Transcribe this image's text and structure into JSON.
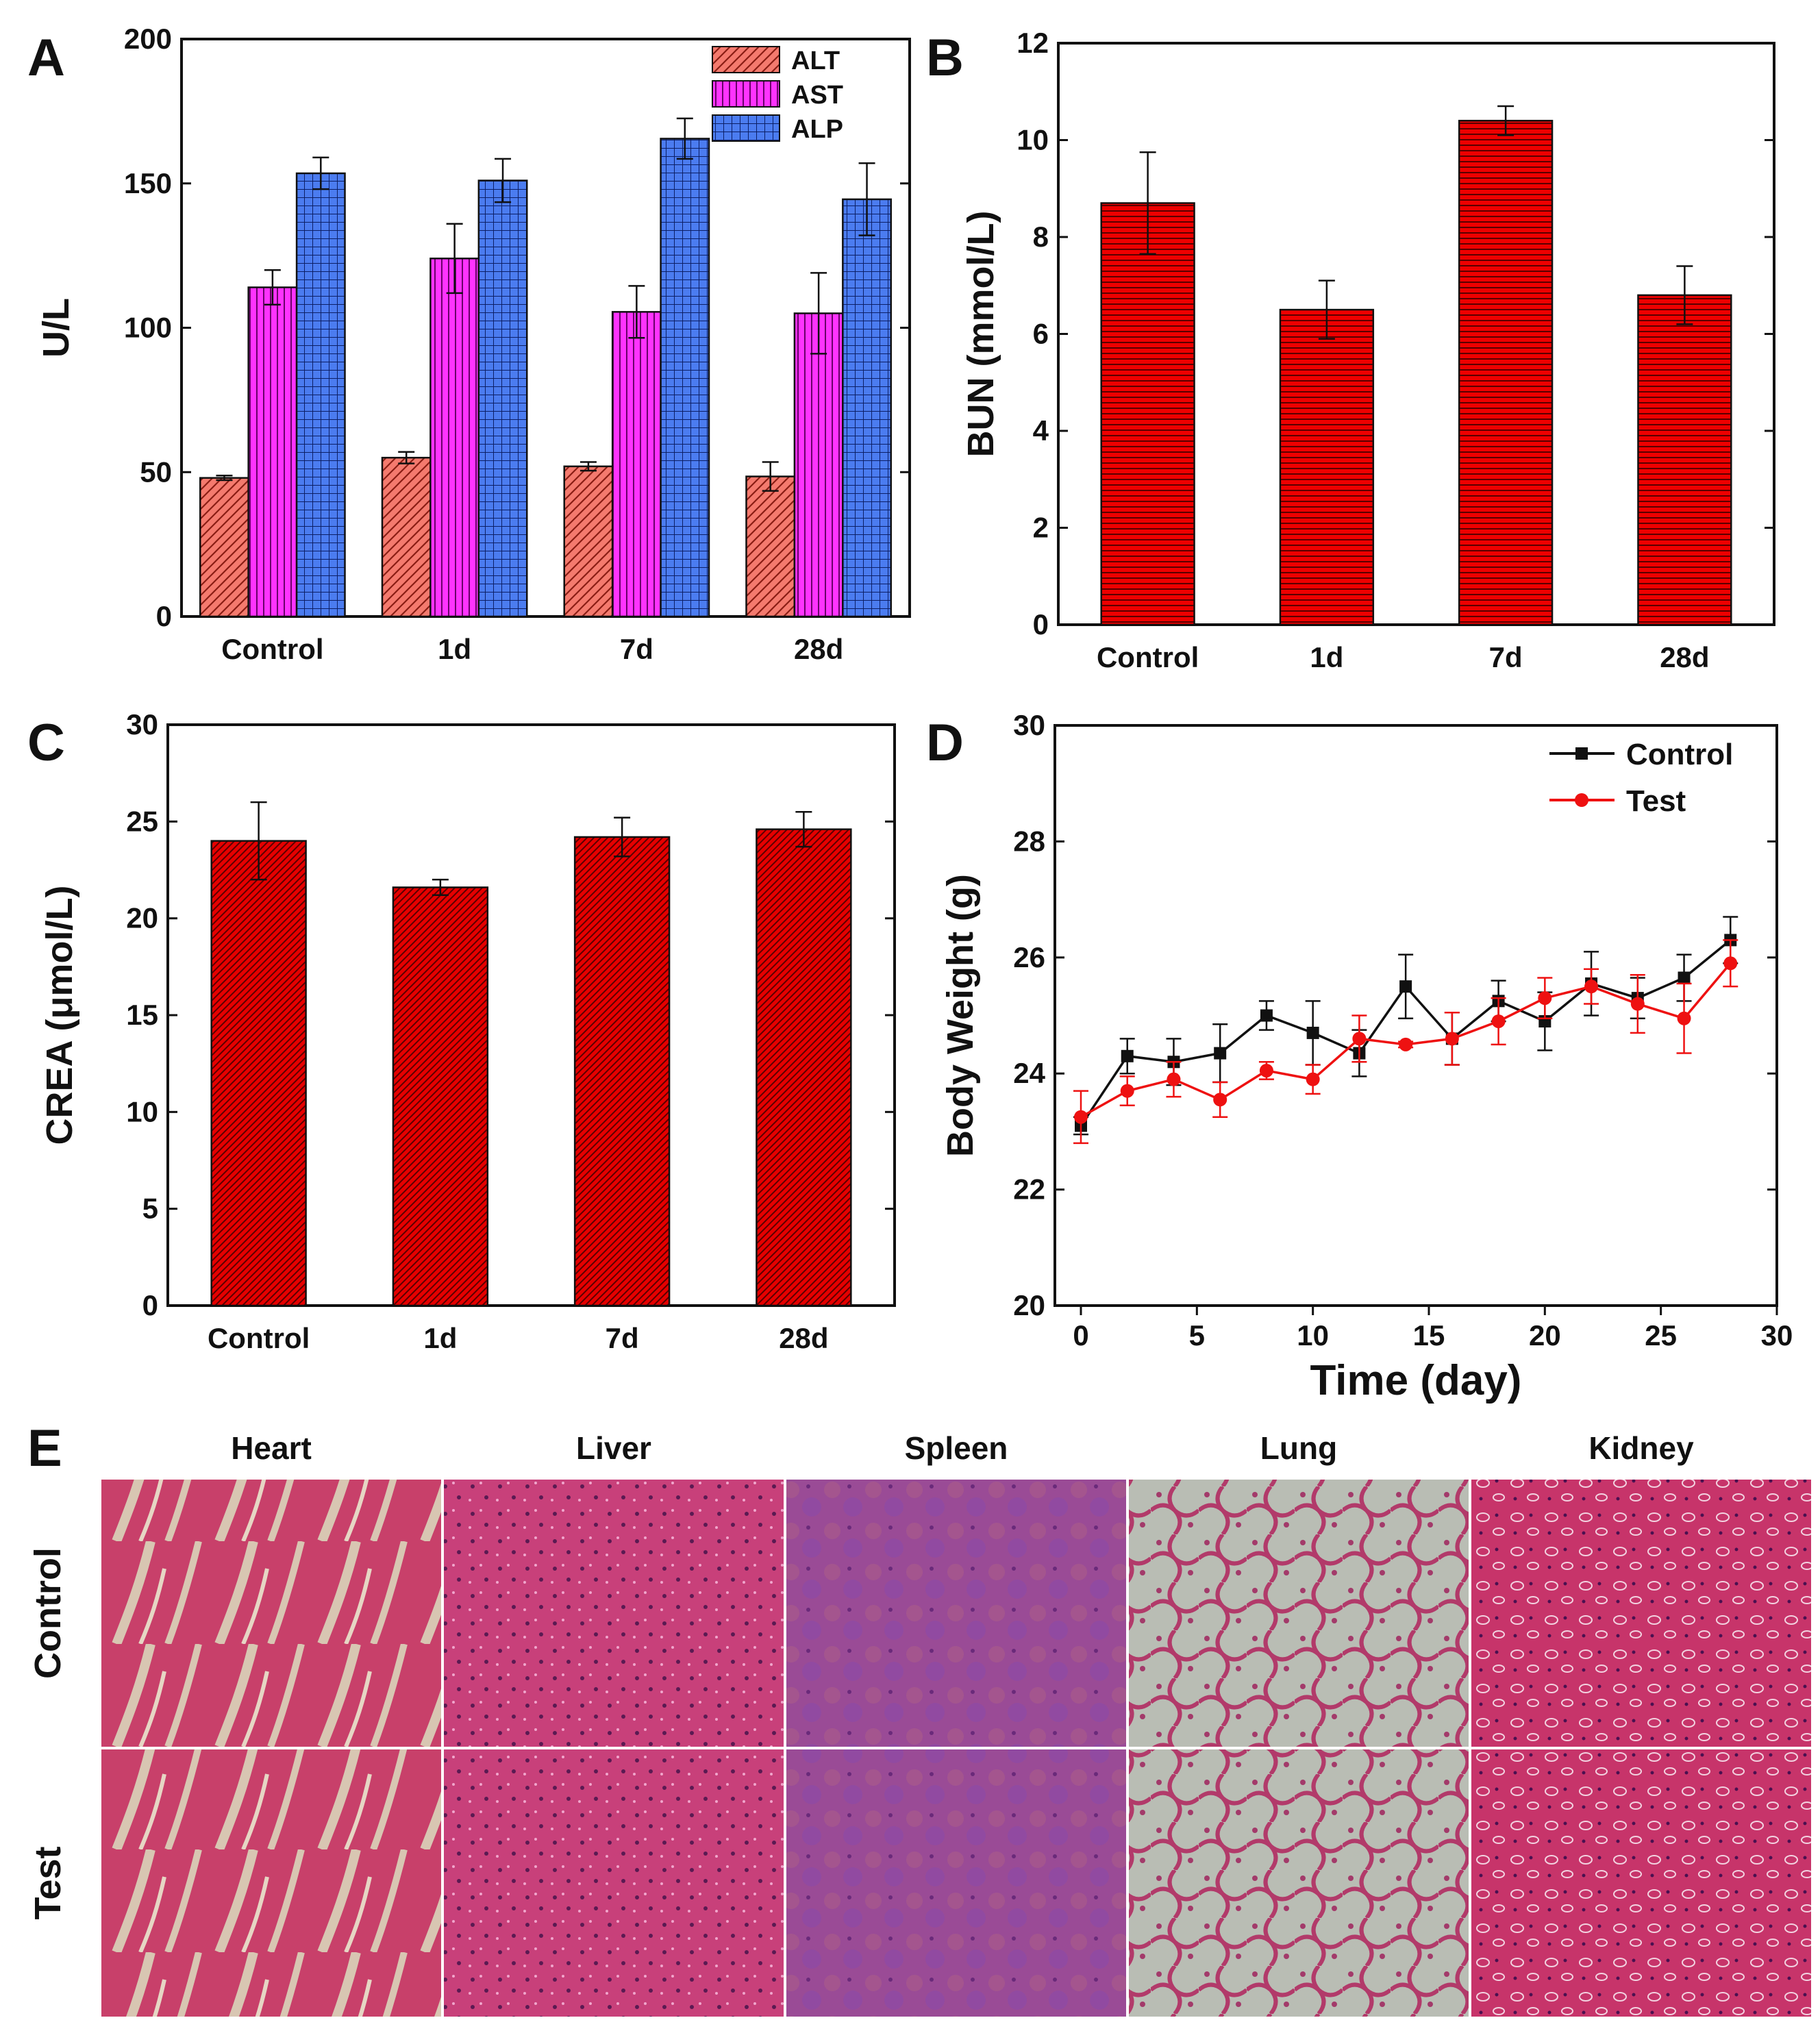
{
  "chart_data": [
    {
      "id": "A",
      "panel_label": "A",
      "type": "bar",
      "ylabel": "U/L",
      "xlabel": "",
      "ylim": [
        0,
        200
      ],
      "yticks": [
        "0",
        "50",
        "100",
        "150",
        "200"
      ],
      "categories": [
        "Control",
        "1d",
        "7d",
        "28d"
      ],
      "series": [
        {
          "name": "ALT",
          "color": "#f47a6e",
          "pattern": "diagonal",
          "values": [
            48,
            55,
            52,
            48.5
          ],
          "errors": [
            0.8,
            2,
            1.5,
            5
          ]
        },
        {
          "name": "AST",
          "color": "#ff33ff",
          "pattern": "vertical",
          "values": [
            114,
            124,
            105.5,
            105
          ],
          "errors": [
            6,
            12,
            9,
            14
          ]
        },
        {
          "name": "ALP",
          "color": "#3f74ee",
          "pattern": "grid",
          "values": [
            153.5,
            151,
            165.5,
            144.5
          ],
          "errors": [
            5.5,
            7.5,
            7,
            12.5
          ]
        }
      ],
      "legend_position": "top-right"
    },
    {
      "id": "B",
      "panel_label": "B",
      "type": "bar",
      "ylabel": "BUN (mmol/L)",
      "xlabel": "",
      "ylim": [
        0,
        12
      ],
      "yticks": [
        "0",
        "2",
        "4",
        "6",
        "8",
        "10",
        "12"
      ],
      "categories": [
        "Control",
        "1d",
        "7d",
        "28d"
      ],
      "series": [
        {
          "name": "BUN",
          "color": "#ee0000",
          "pattern": "horizontal",
          "values": [
            8.7,
            6.5,
            10.4,
            6.8
          ],
          "errors": [
            1.05,
            0.6,
            0.3,
            0.6
          ]
        }
      ]
    },
    {
      "id": "C",
      "panel_label": "C",
      "type": "bar",
      "ylabel": "CREA (μmol/L)",
      "xlabel": "",
      "ylim": [
        0,
        30
      ],
      "yticks": [
        "0",
        "5",
        "10",
        "15",
        "20",
        "25",
        "30"
      ],
      "categories": [
        "Control",
        "1d",
        "7d",
        "28d"
      ],
      "series": [
        {
          "name": "CREA",
          "color": "#ee0000",
          "pattern": "diagonal",
          "values": [
            24,
            21.6,
            24.2,
            24.6
          ],
          "errors": [
            2,
            0.4,
            1,
            0.9
          ]
        }
      ]
    },
    {
      "id": "D",
      "panel_label": "D",
      "type": "line",
      "ylabel": "Body Weight (g)",
      "xlabel": "Time (day)",
      "xlim": [
        0,
        30
      ],
      "ylim": [
        20,
        30
      ],
      "xticks": [
        "0",
        "5",
        "10",
        "15",
        "20",
        "25",
        "30"
      ],
      "yticks": [
        "20",
        "22",
        "24",
        "26",
        "28",
        "30"
      ],
      "x": [
        0,
        2,
        4,
        6,
        8,
        10,
        12,
        14,
        16,
        18,
        20,
        22,
        24,
        26,
        28
      ],
      "series": [
        {
          "name": "Control",
          "color": "#111111",
          "marker": "square",
          "values": [
            23.1,
            24.3,
            24.2,
            24.35,
            25.0,
            24.7,
            24.35,
            25.5,
            24.6,
            25.25,
            24.9,
            25.55,
            25.3,
            25.65,
            26.3
          ],
          "errors": [
            0.15,
            0.3,
            0.4,
            0.5,
            0.25,
            0.55,
            0.4,
            0.55,
            0.45,
            0.35,
            0.5,
            0.55,
            0.35,
            0.4,
            0.4
          ]
        },
        {
          "name": "Test",
          "color": "#ee1111",
          "marker": "circle",
          "values": [
            23.25,
            23.7,
            23.9,
            23.55,
            24.05,
            23.9,
            24.6,
            24.5,
            24.6,
            24.9,
            25.3,
            25.5,
            25.2,
            24.95,
            25.9
          ],
          "errors": [
            0.45,
            0.25,
            0.3,
            0.3,
            0.15,
            0.25,
            0.4,
            0.05,
            0.45,
            0.4,
            0.35,
            0.3,
            0.5,
            0.6,
            0.4
          ]
        }
      ],
      "legend_position": "top-right"
    }
  ],
  "histology": {
    "panel_label": "E",
    "columns": [
      "Heart",
      "Liver",
      "Spleen",
      "Lung",
      "Kidney"
    ],
    "rows": [
      "Control",
      "Test"
    ]
  }
}
